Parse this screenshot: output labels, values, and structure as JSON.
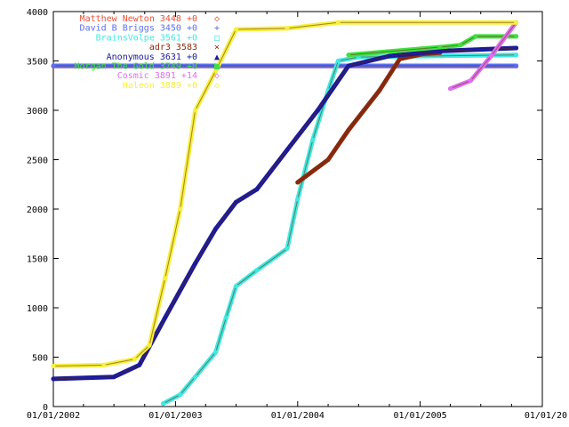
{
  "chart_data": {
    "type": "line",
    "title": "",
    "xlabel": "",
    "ylabel": "",
    "xlim": [
      "2002-01-01",
      "2006-01-01"
    ],
    "ylim": [
      0,
      4000
    ],
    "grid": false,
    "legend_position": "top-left",
    "x_ticks": [
      "01/01/2002",
      "01/01/2003",
      "01/01/2004",
      "01/01/2005",
      "01/01/20"
    ],
    "y_ticks": [
      0,
      500,
      1000,
      1500,
      2000,
      2500,
      3000,
      3500,
      4000
    ],
    "series": [
      {
        "name": "Matthew Newton 3448 +0",
        "marker": "◇",
        "color": "#e8503a",
        "points": [
          [
            "2002-01-01",
            3448
          ],
          [
            "2005-10-15",
            3448
          ]
        ]
      },
      {
        "name": "David B Briggs 3450 +0",
        "marker": "+",
        "color": "#5a6ef0",
        "points": [
          [
            "2002-01-01",
            3450
          ],
          [
            "2005-10-15",
            3450
          ]
        ]
      },
      {
        "name": "BrainsVolpe 3561 +0",
        "marker": "□",
        "color": "#40e8e0",
        "points": [
          [
            "2002-11-25",
            30
          ],
          [
            "2003-01-15",
            120
          ],
          [
            "2003-03-01",
            300
          ],
          [
            "2003-05-01",
            550
          ],
          [
            "2003-06-01",
            900
          ],
          [
            "2003-07-01",
            1220
          ],
          [
            "2003-09-01",
            1380
          ],
          [
            "2003-12-01",
            1600
          ],
          [
            "2004-01-01",
            2100
          ],
          [
            "2004-02-15",
            2700
          ],
          [
            "2004-04-01",
            3200
          ],
          [
            "2004-05-01",
            3500
          ],
          [
            "2004-07-01",
            3540
          ],
          [
            "2005-10-15",
            3561
          ]
        ]
      },
      {
        "name": "adr3 3583",
        "marker": "×",
        "color": "#8b2a10",
        "points": [
          [
            "2004-01-01",
            2270
          ],
          [
            "2004-04-01",
            2500
          ],
          [
            "2004-06-01",
            2800
          ],
          [
            "2004-09-01",
            3200
          ],
          [
            "2004-11-01",
            3520
          ],
          [
            "2005-01-15",
            3575
          ],
          [
            "2005-03-01",
            3583
          ]
        ]
      },
      {
        "name": "Anonymous 3631 +0",
        "marker": "▲",
        "color": "#1a1a9a",
        "points": [
          [
            "2002-01-01",
            280
          ],
          [
            "2002-07-01",
            300
          ],
          [
            "2002-09-15",
            420
          ],
          [
            "2002-12-01",
            900
          ],
          [
            "2003-03-01",
            1450
          ],
          [
            "2003-05-01",
            1800
          ],
          [
            "2003-07-01",
            2070
          ],
          [
            "2003-09-01",
            2200
          ],
          [
            "2003-12-01",
            2600
          ],
          [
            "2004-03-01",
            3000
          ],
          [
            "2004-06-01",
            3450
          ],
          [
            "2004-10-01",
            3550
          ],
          [
            "2005-03-01",
            3600
          ],
          [
            "2005-10-15",
            3631
          ]
        ]
      },
      {
        "name": "Morgan The Gold 3749 +0",
        "marker": "■",
        "color": "#40e040",
        "points": [
          [
            "2004-06-01",
            3560
          ],
          [
            "2005-03-01",
            3640
          ],
          [
            "2005-05-01",
            3660
          ],
          [
            "2005-06-15",
            3749
          ],
          [
            "2005-10-15",
            3749
          ]
        ]
      },
      {
        "name": "Cosmic 3891 +14",
        "marker": "◇",
        "color": "#e070f0",
        "points": [
          [
            "2005-04-01",
            3220
          ],
          [
            "2005-06-01",
            3300
          ],
          [
            "2005-08-01",
            3550
          ],
          [
            "2005-10-15",
            3891
          ]
        ]
      },
      {
        "name": "Haleon 3889 +0",
        "marker": "◇",
        "color": "#f5f040",
        "points": [
          [
            "2002-01-01",
            410
          ],
          [
            "2002-06-01",
            420
          ],
          [
            "2002-09-01",
            480
          ],
          [
            "2002-10-15",
            620
          ],
          [
            "2002-12-01",
            1300
          ],
          [
            "2003-01-15",
            2000
          ],
          [
            "2003-03-01",
            3000
          ],
          [
            "2003-05-01",
            3400
          ],
          [
            "2003-07-01",
            3820
          ],
          [
            "2003-12-01",
            3830
          ],
          [
            "2004-05-01",
            3889
          ],
          [
            "2005-10-15",
            3889
          ]
        ]
      }
    ]
  }
}
